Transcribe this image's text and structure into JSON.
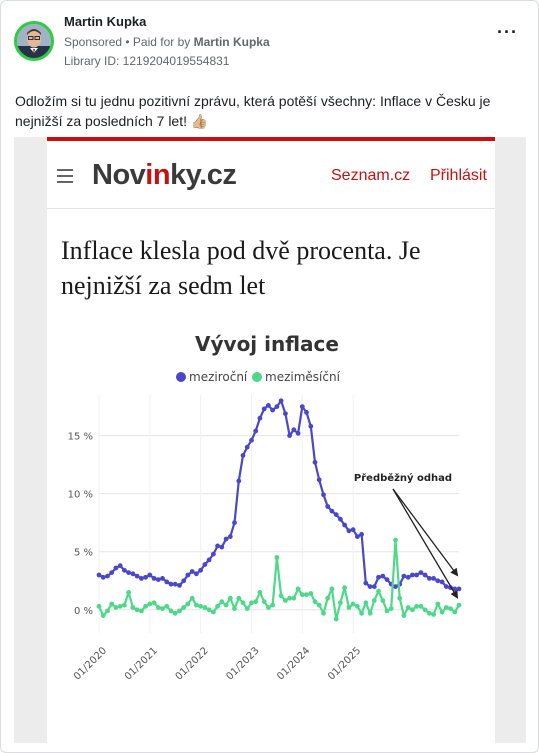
{
  "post": {
    "author": "Martin Kupka",
    "sponsored": "Sponsored",
    "paid_prefix": "• Paid for by",
    "paid_by": "Martin Kupka",
    "library_id": "Library ID: 1219204019554831",
    "more_icon": "more-dots-icon",
    "caption": "Odložím si tu jednu pozitivní zprávu, která potěší všechny: Inflace v Česku je nejnižší za posledních 7 let! 👍🏼"
  },
  "article": {
    "logo_prefix": "Nov",
    "logo_in": "in",
    "logo_suffix": "ky.cz",
    "nav_seznam": "Seznam.cz",
    "nav_login": "Přihlásit",
    "menu_icon": "hamburger-menu-icon",
    "headline": "Inflace klesla pod dvě procenta. Je nejnižší za sedm let",
    "accent_color": "#c81010"
  },
  "chart_data": {
    "type": "line",
    "title": "Vývoj inflace",
    "legend_position": "top",
    "annotation": "Předběžný odhad",
    "y_ticks": [
      "0 %",
      "5 %",
      "10 %",
      "15 %"
    ],
    "y_tick_values": [
      0,
      5,
      10,
      15
    ],
    "ylim": [
      -2,
      18.5
    ],
    "x_ticks": [
      "01/2020",
      "01/2021",
      "01/2022",
      "01/2023",
      "01/2024",
      "01/2025"
    ],
    "series": [
      {
        "name": "meziroční",
        "color": "#4a47c9",
        "values": [
          3.0,
          2.8,
          2.9,
          3.2,
          3.6,
          3.8,
          3.4,
          3.2,
          3.1,
          2.9,
          2.7,
          2.8,
          3.0,
          2.7,
          2.6,
          2.7,
          2.4,
          2.2,
          2.2,
          2.1,
          2.5,
          3.0,
          3.3,
          3.1,
          3.4,
          3.9,
          4.3,
          4.8,
          5.5,
          5.4,
          6.1,
          6.3,
          7.5,
          11.1,
          13.3,
          14.0,
          14.6,
          15.4,
          16.5,
          17.3,
          17.6,
          17.2,
          17.5,
          18.0,
          16.9,
          15.0,
          15.5,
          15.2,
          17.5,
          17.0,
          15.8,
          12.7,
          11.2,
          9.9,
          8.9,
          8.5,
          8.2,
          7.8,
          7.3,
          6.8,
          6.9,
          6.3,
          6.5,
          2.3,
          2.0,
          2.0,
          2.8,
          2.9,
          2.6,
          2.2,
          2.0,
          2.2,
          2.9,
          2.8,
          3.0,
          3.0,
          3.2,
          3.0,
          2.7,
          2.7,
          2.5,
          2.4,
          2.0,
          1.9,
          1.8,
          1.8
        ]
      },
      {
        "name": "meziměsíční",
        "color": "#4ed98a",
        "values": [
          0.3,
          -0.5,
          -0.1,
          0.5,
          0.2,
          0.3,
          0.4,
          1.5,
          0.2,
          0.0,
          -0.1,
          0.3,
          0.5,
          0.6,
          0.2,
          0.1,
          0.3,
          -0.1,
          -0.3,
          -0.1,
          0.2,
          0.5,
          1.0,
          0.4,
          0.3,
          0.2,
          0.0,
          -0.2,
          0.3,
          0.7,
          0.4,
          1.0,
          0.1,
          1.0,
          0.6,
          0.1,
          0.6,
          0.7,
          1.5,
          0.7,
          0.2,
          0.4,
          4.5,
          1.2,
          0.8,
          1.0,
          1.0,
          1.8,
          1.3,
          1.3,
          1.4,
          0.7,
          0.4,
          -0.3,
          1.0,
          1.8,
          -0.8,
          0.6,
          1.9,
          0.2,
          0.5,
          0.3,
          -0.3,
          0.6,
          -0.3,
          0.8,
          1.6,
          0.8,
          -0.1,
          0.1,
          6.0,
          1.0,
          -0.5,
          0.2,
          0.0,
          0.3,
          0.3,
          0.0,
          -0.3,
          -0.4,
          0.5,
          -0.2,
          0.2,
          0.1,
          -0.2,
          0.4
        ]
      }
    ]
  }
}
